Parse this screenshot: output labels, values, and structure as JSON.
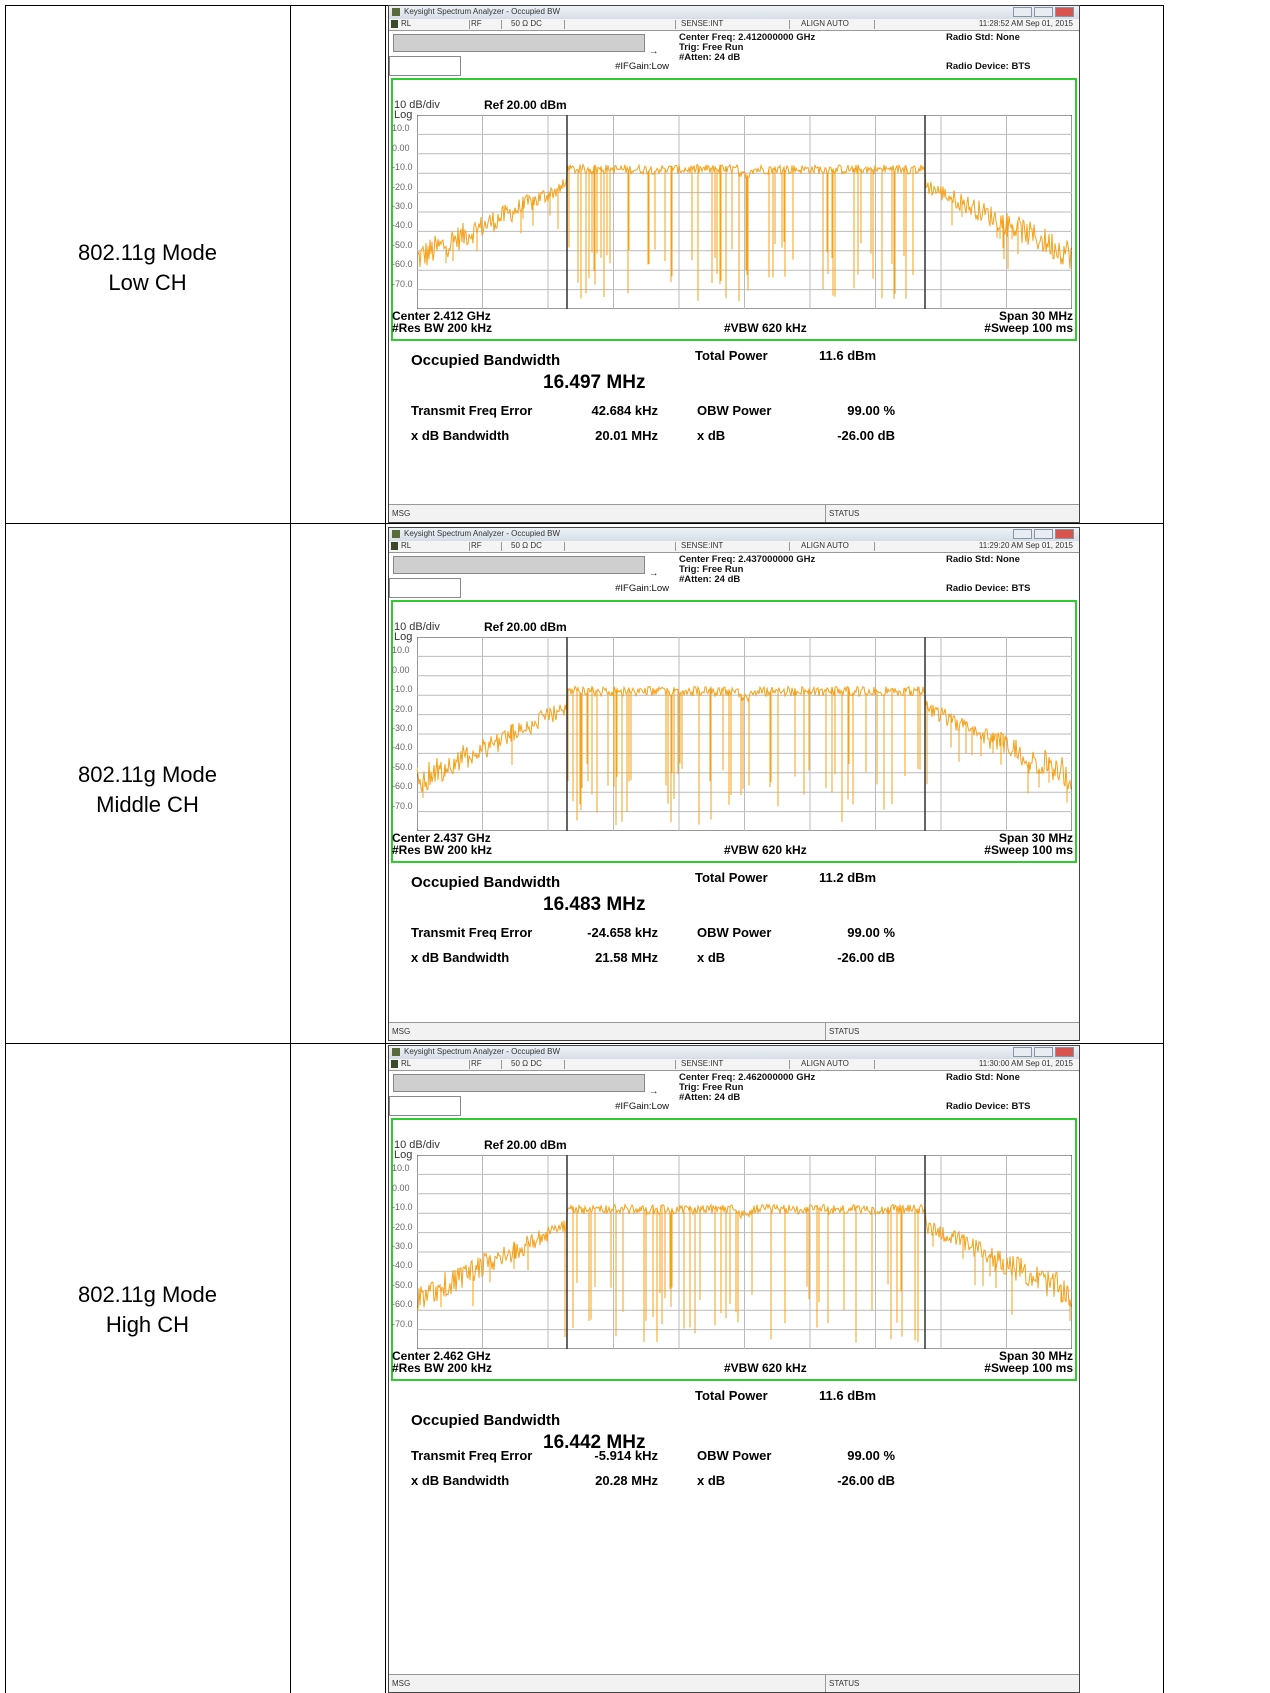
{
  "rows": [
    {
      "label": [
        "802.11g Mode",
        "Low CH"
      ],
      "screen": {
        "title": "Keysight Spectrum Analyzer - Occupied BW",
        "status": [
          "RL",
          "RF",
          "50 Ω  DC",
          "SENSE:INT",
          "ALIGN AUTO"
        ],
        "time": "11:28:52 AM Sep 01, 2015",
        "center_freq": "Center Freq: 2.412000000 GHz",
        "trig": "Trig: Free Run",
        "atten": "#Atten: 24 dB",
        "ifgain": "#IFGain:Low",
        "radio_std": "Radio Std: None",
        "radio_device": "Radio Device: BTS",
        "scale": "10 dB/div",
        "log": "Log",
        "ref": "Ref 20.00 dBm",
        "y_labels": [
          "10.0",
          "0.00",
          "-10.0",
          "-20.0",
          "-30.0",
          "-40.0",
          "-50.0",
          "-60.0",
          "-70.0"
        ],
        "center": "Center  2.412 GHz",
        "span": "Span 30 MHz",
        "res_bw": "#Res BW  200 kHz",
        "vbw": "#VBW  620 kHz",
        "sweep": "#Sweep  100 ms",
        "obw_label": "Occupied Bandwidth",
        "obw": "16.497 MHz",
        "total_power_label": "Total Power",
        "total_power": "11.6 dBm",
        "tfe_label": "Transmit Freq Error",
        "tfe": "42.684 kHz",
        "obw_power_label": "OBW Power",
        "obw_power": "99.00 %",
        "xdb_bw_label": "x dB Bandwidth",
        "xdb_bw": "20.01 MHz",
        "xdb_label": "x dB",
        "xdb": "-26.00 dB",
        "msg": "MSG",
        "status_label": "STATUS"
      }
    },
    {
      "label": [
        "802.11g Mode",
        "Middle CH"
      ],
      "screen": {
        "title": "Keysight Spectrum Analyzer - Occupied BW",
        "status": [
          "RL",
          "RF",
          "50 Ω  DC",
          "SENSE:INT",
          "ALIGN AUTO"
        ],
        "time": "11:29:20 AM Sep 01, 2015",
        "center_freq": "Center Freq: 2.437000000 GHz",
        "trig": "Trig: Free Run",
        "atten": "#Atten: 24 dB",
        "ifgain": "#IFGain:Low",
        "radio_std": "Radio Std: None",
        "radio_device": "Radio Device: BTS",
        "scale": "10 dB/div",
        "log": "Log",
        "ref": "Ref 20.00 dBm",
        "y_labels": [
          "10.0",
          "0.00",
          "-10.0",
          "-20.0",
          "-30.0",
          "-40.0",
          "-50.0",
          "-60.0",
          "-70.0"
        ],
        "center": "Center  2.437 GHz",
        "span": "Span 30 MHz",
        "res_bw": "#Res BW  200 kHz",
        "vbw": "#VBW  620 kHz",
        "sweep": "#Sweep  100 ms",
        "obw_label": "Occupied Bandwidth",
        "obw": "16.483 MHz",
        "total_power_label": "Total Power",
        "total_power": "11.2 dBm",
        "tfe_label": "Transmit Freq Error",
        "tfe": "-24.658 kHz",
        "obw_power_label": "OBW Power",
        "obw_power": "99.00 %",
        "xdb_bw_label": "x dB Bandwidth",
        "xdb_bw": "21.58 MHz",
        "xdb_label": "x dB",
        "xdb": "-26.00 dB",
        "msg": "MSG",
        "status_label": "STATUS"
      }
    },
    {
      "label": [
        "802.11g Mode",
        "High CH"
      ],
      "screen": {
        "title": "Keysight Spectrum Analyzer - Occupied BW",
        "status": [
          "RL",
          "RF",
          "50 Ω  DC",
          "SENSE:INT",
          "ALIGN AUTO"
        ],
        "time": "11:30:00 AM Sep 01, 2015",
        "center_freq": "Center Freq: 2.462000000 GHz",
        "trig": "Trig: Free Run",
        "atten": "#Atten: 24 dB",
        "ifgain": "#IFGain:Low",
        "radio_std": "Radio Std: None",
        "radio_device": "Radio Device: BTS",
        "scale": "10 dB/div",
        "log": "Log",
        "ref": "Ref 20.00 dBm",
        "y_labels": [
          "10.0",
          "0.00",
          "-10.0",
          "-20.0",
          "-30.0",
          "-40.0",
          "-50.0",
          "-60.0",
          "-70.0"
        ],
        "center": "Center  2.462 GHz",
        "span": "Span 30 MHz",
        "res_bw": "#Res BW  200 kHz",
        "vbw": "#VBW  620 kHz",
        "sweep": "#Sweep  100 ms",
        "obw_label": "Occupied Bandwidth",
        "obw": "16.442 MHz",
        "total_power_label": "Total Power",
        "total_power": "11.6 dBm",
        "tfe_label": "Transmit Freq Error",
        "tfe": "-5.914 kHz",
        "obw_power_label": "OBW Power",
        "obw_power": "99.00 %",
        "xdb_bw_label": "x dB Bandwidth",
        "xdb_bw": "20.28 MHz",
        "xdb_label": "x dB",
        "xdb": "-26.00 dB",
        "msg": "MSG",
        "status_label": "STATUS"
      }
    }
  ]
}
